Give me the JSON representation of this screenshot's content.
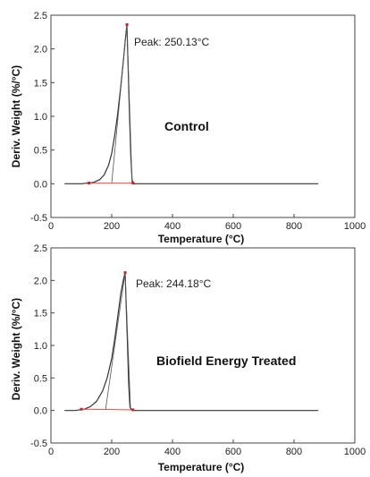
{
  "chart_data": [
    {
      "type": "line",
      "xlabel": "Temperature (°C)",
      "ylabel": "Deriv. Weight (%/°C)",
      "xlim": [
        0,
        1000
      ],
      "ylim": [
        -0.5,
        2.5
      ],
      "x_ticks": [
        "0",
        "200",
        "400",
        "600",
        "800",
        "1000"
      ],
      "y_ticks": [
        "-0.5",
        "0.0",
        "0.5",
        "1.0",
        "1.5",
        "2.0",
        "2.5"
      ],
      "sample_label": "Control",
      "peak_label": "Peak: 250.13°C",
      "grid": false,
      "series": [
        {
          "x": [
            45,
            100,
            140,
            160,
            175,
            190,
            200,
            210,
            220,
            230,
            240,
            245,
            250.13,
            253,
            258,
            263,
            267,
            275,
            300,
            350,
            500,
            700,
            880
          ],
          "y": [
            0.0,
            0.0,
            0.02,
            0.06,
            0.13,
            0.28,
            0.45,
            0.72,
            1.05,
            1.45,
            1.9,
            2.15,
            2.36,
            1.9,
            1.1,
            0.4,
            0.05,
            0.0,
            0.0,
            0.0,
            0.0,
            0.0,
            0.0
          ]
        }
      ],
      "baseline": {
        "x": [
          125,
          270
        ],
        "y": [
          0.01,
          0.01
        ]
      },
      "construction": {
        "x": [
          200,
          250.13,
          267
        ],
        "y": [
          0.01,
          2.36,
          0.01
        ]
      },
      "markers": {
        "x": [
          125,
          250.13,
          270
        ],
        "y": [
          0.01,
          2.36,
          0.01
        ]
      },
      "colors": {
        "curve": "#333333",
        "baseline": "#ff4444",
        "marker": "#cc2222"
      }
    },
    {
      "type": "line",
      "xlabel": "Temperature (°C)",
      "ylabel": "Deriv. Weight (%/°C)",
      "xlim": [
        0,
        1000
      ],
      "ylim": [
        -0.5,
        2.5
      ],
      "x_ticks": [
        "0",
        "200",
        "400",
        "600",
        "800",
        "1000"
      ],
      "y_ticks": [
        "-0.5",
        "0.0",
        "0.5",
        "1.0",
        "1.5",
        "2.0",
        "2.5"
      ],
      "sample_label": "Biofield Energy Treated",
      "peak_label": "Peak: 244.18°C",
      "grid": false,
      "series": [
        {
          "x": [
            45,
            80,
            110,
            130,
            150,
            170,
            185,
            200,
            210,
            220,
            230,
            238,
            244.18,
            247,
            252,
            256,
            260,
            268,
            300,
            350,
            500,
            700,
            880
          ],
          "y": [
            0.0,
            0.0,
            0.02,
            0.06,
            0.14,
            0.3,
            0.5,
            0.8,
            1.1,
            1.45,
            1.8,
            2.0,
            2.12,
            1.7,
            1.0,
            0.4,
            0.05,
            0.0,
            0.0,
            0.0,
            0.0,
            0.0,
            0.0
          ]
        }
      ],
      "baseline": {
        "x": [
          100,
          270
        ],
        "y": [
          0.02,
          0.01
        ]
      },
      "construction": {
        "x": [
          180,
          244.18,
          262
        ],
        "y": [
          0.02,
          2.12,
          0.01
        ]
      },
      "markers": {
        "x": [
          100,
          244.18,
          270
        ],
        "y": [
          0.02,
          2.12,
          0.01
        ]
      },
      "colors": {
        "curve": "#333333",
        "baseline": "#ff4444",
        "marker": "#cc2222"
      }
    }
  ]
}
